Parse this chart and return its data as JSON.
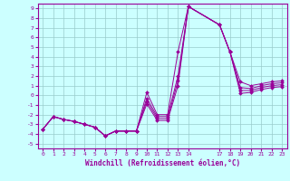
{
  "title": "",
  "xlabel": "Windchill (Refroidissement éolien,°C)",
  "bg_color": "#ccffff",
  "line_color": "#990099",
  "grid_color": "#99cccc",
  "x_ticks": [
    0,
    1,
    2,
    3,
    4,
    5,
    6,
    7,
    8,
    9,
    10,
    11,
    12,
    13,
    14,
    17,
    18,
    19,
    20,
    21,
    22,
    23
  ],
  "y_ticks": [
    -5,
    -4,
    -3,
    -2,
    -1,
    0,
    1,
    2,
    3,
    4,
    5,
    6,
    7,
    8,
    9
  ],
  "xlim": [
    -0.5,
    23.5
  ],
  "ylim": [
    -5.5,
    9.5
  ],
  "series": [
    {
      "x": [
        0,
        1,
        2,
        3,
        4,
        5,
        6,
        7,
        8,
        9,
        10,
        11,
        12,
        13,
        14,
        17,
        18,
        19,
        20,
        21,
        22,
        23
      ],
      "y": [
        -3.5,
        -2.2,
        -2.5,
        -2.7,
        -3.0,
        -3.3,
        -4.2,
        -3.7,
        -3.7,
        -3.7,
        0.3,
        -2.0,
        -2.0,
        4.5,
        9.2,
        7.3,
        4.5,
        1.4,
        1.0,
        1.2,
        1.4,
        1.5
      ]
    },
    {
      "x": [
        0,
        1,
        2,
        3,
        4,
        5,
        6,
        7,
        8,
        9,
        10,
        11,
        12,
        13,
        14,
        17,
        18,
        19,
        20,
        21,
        22,
        23
      ],
      "y": [
        -3.5,
        -2.2,
        -2.5,
        -2.7,
        -3.0,
        -3.3,
        -4.2,
        -3.7,
        -3.7,
        -3.7,
        -0.3,
        -2.2,
        -2.2,
        2.0,
        9.2,
        7.3,
        4.5,
        0.8,
        0.7,
        1.0,
        1.2,
        1.3
      ]
    },
    {
      "x": [
        0,
        1,
        2,
        3,
        4,
        5,
        6,
        7,
        8,
        9,
        10,
        11,
        12,
        13,
        14,
        17,
        18,
        19,
        20,
        21,
        22,
        23
      ],
      "y": [
        -3.5,
        -2.2,
        -2.5,
        -2.7,
        -3.0,
        -3.3,
        -4.2,
        -3.7,
        -3.7,
        -3.7,
        -0.6,
        -2.4,
        -2.4,
        1.5,
        9.2,
        7.3,
        4.5,
        0.5,
        0.5,
        0.8,
        1.0,
        1.1
      ]
    },
    {
      "x": [
        0,
        1,
        2,
        3,
        4,
        5,
        6,
        7,
        8,
        9,
        10,
        11,
        12,
        13,
        14,
        17,
        18,
        19,
        20,
        21,
        22,
        23
      ],
      "y": [
        -3.5,
        -2.2,
        -2.5,
        -2.7,
        -3.0,
        -3.3,
        -4.2,
        -3.7,
        -3.7,
        -3.7,
        -0.9,
        -2.6,
        -2.6,
        1.0,
        9.2,
        7.3,
        4.5,
        0.2,
        0.3,
        0.6,
        0.8,
        0.9
      ]
    }
  ]
}
